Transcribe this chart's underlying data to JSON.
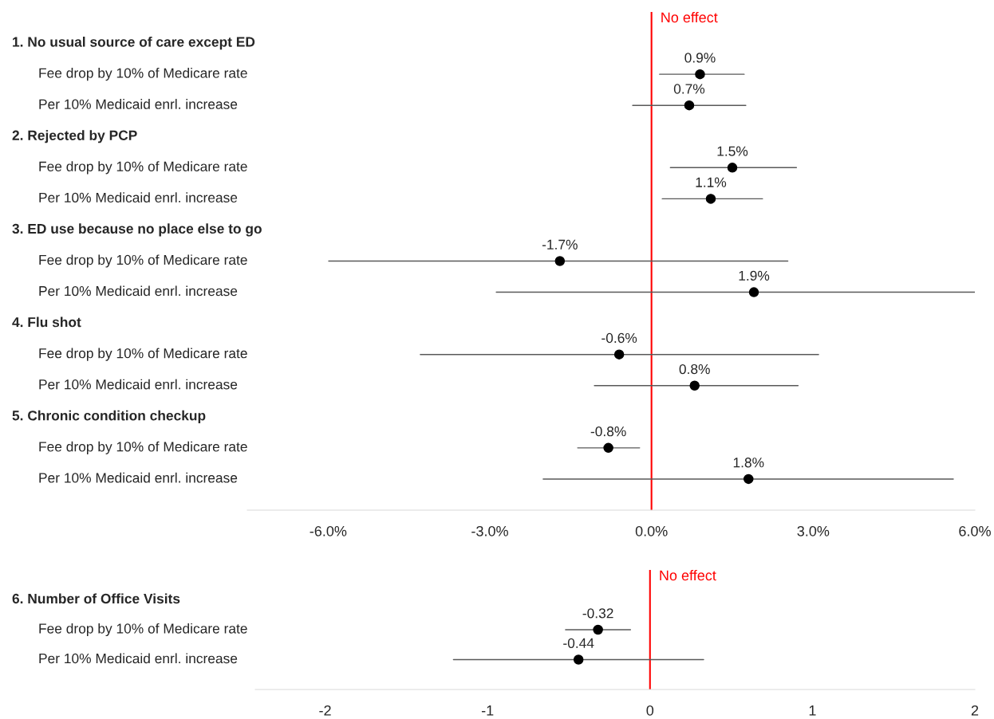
{
  "chart_data": [
    {
      "type": "scatter",
      "orientation": "horizontal",
      "marker": "circle",
      "color": "#000000",
      "grid": false,
      "tick_labels": "x",
      "categories": [
        "1. No usual source of care except ED",
        "Fee drop by 10% of Medicare rate",
        "Per 10% Medicaid enrl. increase",
        "2. Rejected by PCP",
        "Fee drop by 10% of Medicare rate",
        "Per 10% Medicaid enrl. increase",
        "3. ED use because no place else to go",
        "Fee drop by 10% of Medicare rate",
        "Per 10% Medicaid enrl. increase",
        "4. Flu shot",
        "Fee drop by 10% of Medicare rate",
        "Per 10% Medicaid enrl. increase",
        "5. Chronic condition checkup",
        "Fee drop by 10% of Medicare rate",
        "Per 10% Medicaid enrl. increase"
      ],
      "values": [
        null,
        0.9,
        0.7,
        null,
        1.5,
        1.1,
        null,
        -1.7,
        1.9,
        null,
        -0.6,
        0.8,
        null,
        -0.8,
        1.8
      ],
      "value_labels": [
        null,
        "0.9%",
        "0.7%",
        null,
        "1.5%",
        "1.1%",
        null,
        "-1.7%",
        "1.9%",
        null,
        "-0.6%",
        "0.8%",
        null,
        "-0.8%",
        "1.8%"
      ],
      "errors": [
        null,
        [
          0.15,
          1.72
        ],
        [
          -0.35,
          1.75
        ],
        null,
        [
          0.35,
          2.69
        ],
        [
          0.2,
          2.06
        ],
        null,
        [
          -5.99,
          2.53
        ],
        [
          -2.88,
          6.0
        ],
        null,
        [
          -4.29,
          3.1
        ],
        [
          -1.06,
          2.72
        ],
        null,
        [
          -1.37,
          -0.22
        ],
        [
          -2.01,
          5.6
        ]
      ],
      "xlim": [
        -7.5,
        6
      ],
      "xticks": [
        {
          "value": -6,
          "label": "-6.0%"
        },
        {
          "value": -3,
          "label": "-3.0%"
        },
        {
          "value": 0,
          "label": "0.0%"
        },
        {
          "value": 3,
          "label": "3.0%"
        },
        {
          "value": 6,
          "label": "6.0%"
        }
      ],
      "ref_lines": [
        {
          "axis": "x",
          "value": 0,
          "label": "No effect",
          "color": "#ff0000"
        }
      ]
    },
    {
      "type": "scatter",
      "orientation": "horizontal",
      "marker": "circle",
      "color": "#000000",
      "grid": false,
      "tick_labels": "x",
      "categories": [
        "6. Number of Office Visits",
        "Fee drop by 10% of Medicare rate",
        "Per 10% Medicaid enrl. increase"
      ],
      "values": [
        null,
        -0.32,
        -0.44
      ],
      "value_labels": [
        null,
        "-0.32",
        "-0.44"
      ],
      "errors": [
        null,
        [
          -0.52,
          -0.12
        ],
        [
          -1.21,
          0.33
        ]
      ],
      "xlim": [
        -2.43,
        2
      ],
      "xticks": [
        -2,
        -1,
        0,
        1,
        2
      ],
      "ref_lines": [
        {
          "axis": "x",
          "value": 0,
          "label": "No effect",
          "color": "#ff0000"
        }
      ]
    }
  ]
}
